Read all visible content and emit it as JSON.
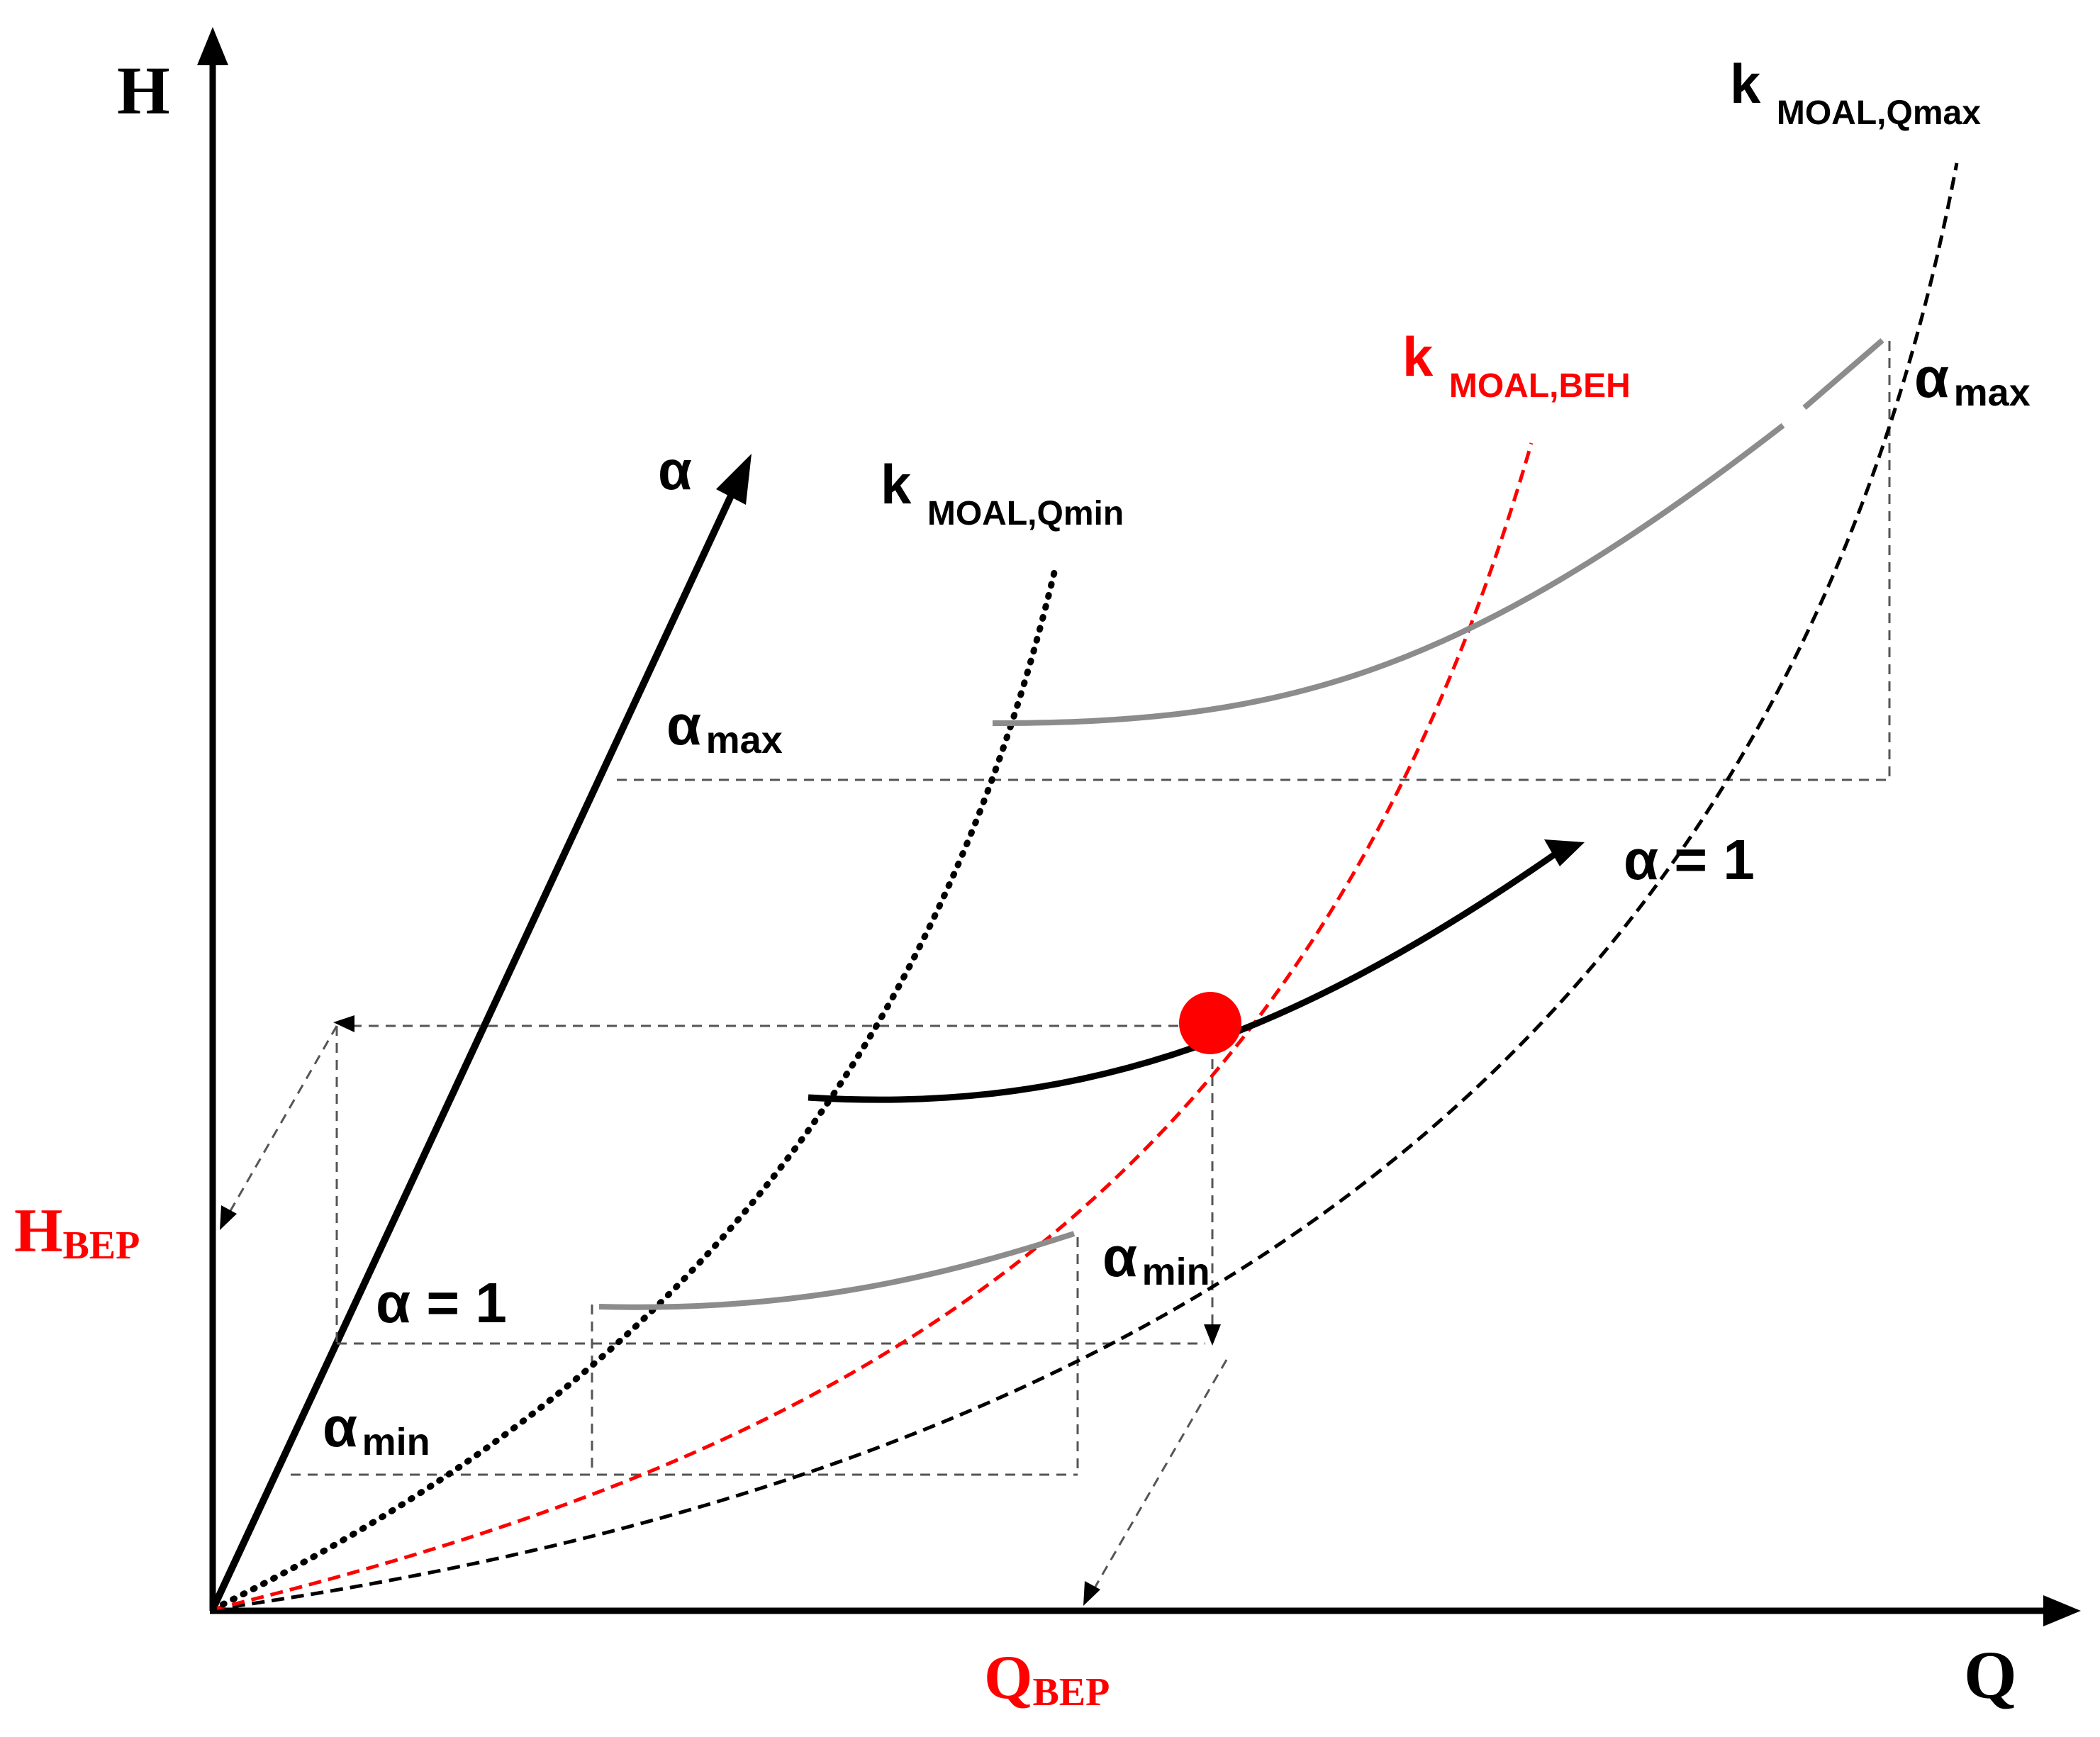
{
  "axes": {
    "y_label": "H",
    "x_label": "Q",
    "alpha_axis_label": "α"
  },
  "curve_labels": {
    "k_qmax": {
      "main": "k",
      "sub": "MOAL,Qmax"
    },
    "k_beh": {
      "main": "k",
      "sub": "MOAL,BEH"
    },
    "k_qmin": {
      "main": "k",
      "sub": "MOAL,Qmin"
    }
  },
  "alpha_labels": {
    "alpha_symbol": "α",
    "max_sub": "max",
    "min_sub": "min",
    "alpha_equals_one": "α = 1"
  },
  "bep_labels": {
    "h_main": "H",
    "h_sub": "BEP",
    "q_main": "Q",
    "q_sub": "BEP"
  },
  "colors": {
    "black": "#000000",
    "red": "#ff0000",
    "gray": "#8c8c8c",
    "dashed_gray": "#555555"
  }
}
